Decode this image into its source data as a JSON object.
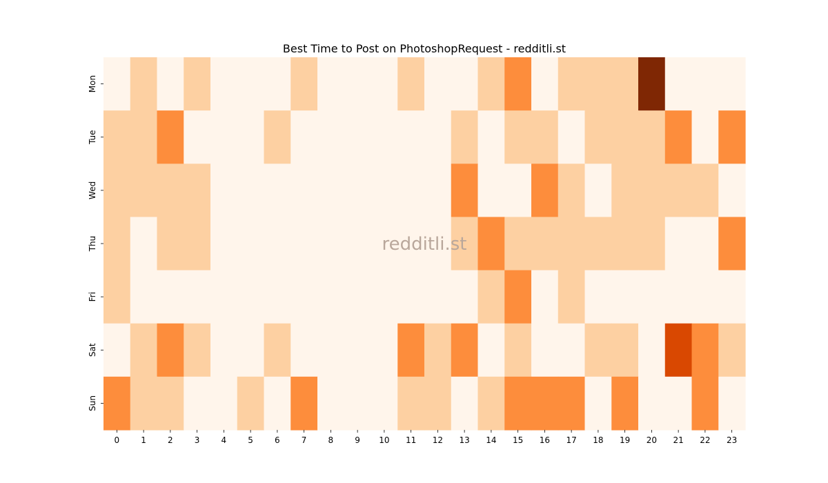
{
  "chart_data": {
    "type": "heatmap",
    "title": "Best Time to Post on PhotoshopRequest - redditli.st",
    "watermark": "redditli.st",
    "xlabel": "",
    "ylabel": "",
    "x_labels": [
      "0",
      "1",
      "2",
      "3",
      "4",
      "5",
      "6",
      "7",
      "8",
      "9",
      "10",
      "11",
      "12",
      "13",
      "14",
      "15",
      "16",
      "17",
      "18",
      "19",
      "20",
      "21",
      "22",
      "23"
    ],
    "y_labels": [
      "Mon",
      "Tue",
      "Wed",
      "Thu",
      "Fri",
      "Sat",
      "Sun"
    ],
    "values": [
      [
        0,
        1,
        0,
        1,
        0,
        0,
        0,
        1,
        0,
        0,
        0,
        1,
        0,
        0,
        1,
        2,
        0,
        1,
        1,
        1,
        4,
        0,
        0,
        0
      ],
      [
        1,
        1,
        2,
        0,
        0,
        0,
        1,
        0,
        0,
        0,
        0,
        0,
        0,
        1,
        0,
        1,
        1,
        0,
        1,
        1,
        1,
        2,
        0,
        2
      ],
      [
        1,
        1,
        1,
        1,
        0,
        0,
        0,
        0,
        0,
        0,
        0,
        0,
        0,
        2,
        0,
        0,
        2,
        1,
        0,
        1,
        1,
        1,
        1,
        0
      ],
      [
        1,
        0,
        1,
        1,
        0,
        0,
        0,
        0,
        0,
        0,
        0,
        0,
        0,
        1,
        2,
        1,
        1,
        1,
        1,
        1,
        1,
        0,
        0,
        2
      ],
      [
        1,
        0,
        0,
        0,
        0,
        0,
        0,
        0,
        0,
        0,
        0,
        0,
        0,
        0,
        1,
        2,
        0,
        1,
        0,
        0,
        0,
        0,
        0,
        0
      ],
      [
        0,
        1,
        2,
        1,
        0,
        0,
        1,
        0,
        0,
        0,
        0,
        2,
        1,
        2,
        0,
        1,
        0,
        0,
        1,
        1,
        0,
        3,
        2,
        1
      ],
      [
        2,
        1,
        1,
        0,
        0,
        1,
        0,
        2,
        0,
        0,
        0,
        1,
        1,
        0,
        1,
        2,
        2,
        2,
        0,
        2,
        0,
        0,
        2,
        0
      ]
    ],
    "color_scale": [
      "#fff5eb",
      "#fdd0a2",
      "#fd8d3c",
      "#d94801",
      "#7f2704"
    ],
    "colorbar": false,
    "grid": false
  }
}
